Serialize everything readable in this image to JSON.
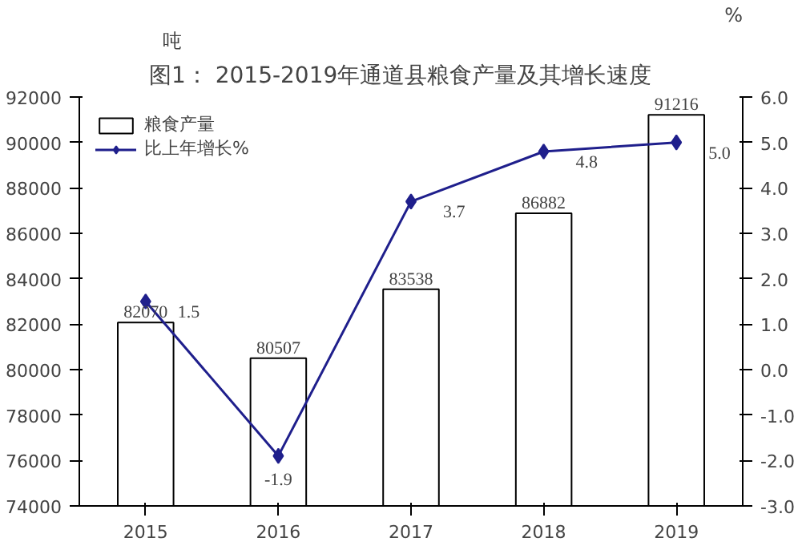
{
  "chart_data": {
    "type": "bar",
    "title": "图1：    2015-2019年通道县粮食产量及其增长速度",
    "ylabel": "吨",
    "y2label": "%",
    "categories": [
      "2015",
      "2016",
      "2017",
      "2018",
      "2019"
    ],
    "series": [
      {
        "name": "粮食产量",
        "color": "#ffffff",
        "values": [
          82070,
          80507,
          83538,
          86882,
          91216
        ]
      },
      {
        "name": "比上年增长%",
        "type": "line",
        "axis": "y2",
        "color": "#1f1f8c",
        "marker": "diamond",
        "values": [
          1.5,
          -1.9,
          3.7,
          4.8,
          5.0
        ],
        "value_labels": [
          "1.5",
          "-1.9",
          "3.7",
          "4.8",
          "5.0"
        ]
      }
    ],
    "ylim": [
      74000,
      92000
    ],
    "yticks": [
      74000,
      76000,
      78000,
      80000,
      82000,
      84000,
      86000,
      88000,
      90000,
      92000
    ],
    "y2lim": [
      -3,
      6
    ],
    "y2ticks": [
      {
        "value": -3,
        "label": "-3.0"
      },
      {
        "value": -2,
        "label": "-2.0"
      },
      {
        "value": -1,
        "label": "-1.0"
      },
      {
        "value": 0,
        "label": "0.0"
      },
      {
        "value": 1,
        "label": "1.0"
      },
      {
        "value": 2,
        "label": "2.0"
      },
      {
        "value": 3,
        "label": "3.0"
      },
      {
        "value": 4,
        "label": "4.0"
      },
      {
        "value": 5,
        "label": "5.0"
      },
      {
        "value": 6,
        "label": "6.0"
      }
    ],
    "data_labels": true,
    "legend": "top left",
    "grid": false
  }
}
